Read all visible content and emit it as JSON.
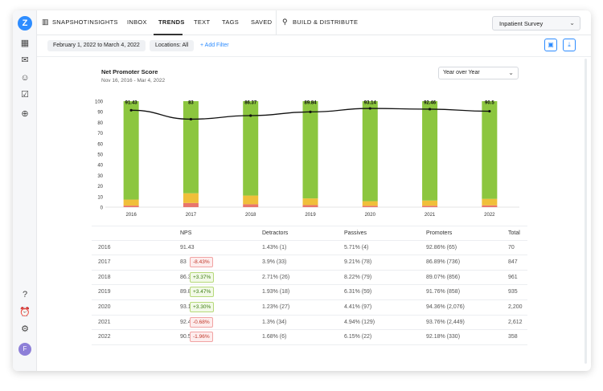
{
  "nav": {
    "items": [
      {
        "key": "snapshot",
        "label": "SNAPSHOT"
      },
      {
        "key": "insights",
        "label": "INSIGHTS"
      },
      {
        "key": "inbox",
        "label": "INBOX"
      },
      {
        "key": "trends",
        "label": "TRENDS"
      },
      {
        "key": "text",
        "label": "TEXT"
      },
      {
        "key": "tags",
        "label": "TAGS"
      },
      {
        "key": "saved",
        "label": "SAVED"
      }
    ],
    "active": "TRENDS",
    "build": "BUILD & DISTRIBUTE",
    "survey": "Inpatient Survey"
  },
  "sidebar": {
    "logo": "Z",
    "avatar": "F",
    "icons": [
      "dashboard-icon",
      "messages-icon",
      "user-icon",
      "tasks-icon",
      "add-icon",
      "help-icon",
      "alarm-icon",
      "settings-icon"
    ]
  },
  "filters": {
    "date_range": "February 1, 2022 to March 4, 2022",
    "locations": "Locations: All",
    "add_filter": "+ Add Filter"
  },
  "chart": {
    "title": "Net Promoter Score",
    "subtitle": "Nov 16, 2016 - Mar 4, 2022",
    "period": "Year over Year"
  },
  "chart_data": {
    "type": "bar",
    "categories": [
      "2016",
      "2017",
      "2018",
      "2019",
      "2020",
      "2021",
      "2022"
    ],
    "ylim": [
      0,
      100
    ],
    "yticks": [
      "100",
      "90",
      "80",
      "70",
      "60",
      "50",
      "40",
      "30",
      "20",
      "10",
      "0"
    ],
    "series": [
      {
        "name": "Detractors",
        "color": "#e8766d",
        "values": [
          1.43,
          3.9,
          2.71,
          1.93,
          1.23,
          1.3,
          1.68
        ]
      },
      {
        "name": "Passives",
        "color": "#f0bf3a",
        "values": [
          5.71,
          9.21,
          8.22,
          6.31,
          4.41,
          4.94,
          6.15
        ]
      },
      {
        "name": "Promoters",
        "color": "#8cc63f",
        "values": [
          92.86,
          86.89,
          89.07,
          91.76,
          94.36,
          93.76,
          92.18
        ]
      }
    ],
    "line": {
      "name": "NPS",
      "values": [
        91.43,
        83,
        86.37,
        89.84,
        93.14,
        92.46,
        90.5
      ],
      "labels": [
        "91.43",
        "83",
        "86.37",
        "89.84",
        "93.14",
        "92.46",
        "90.5"
      ]
    },
    "grid": false
  },
  "table": {
    "headers": [
      "",
      "NPS",
      "Detractors",
      "Passives",
      "Promoters",
      "Total"
    ],
    "rows": [
      {
        "year": "2016",
        "nps": "91.43",
        "change": "",
        "dir": "",
        "detractors": "1.43% (1)",
        "passives": "5.71% (4)",
        "promoters": "92.86% (65)",
        "total": "70"
      },
      {
        "year": "2017",
        "nps": "83",
        "change": "-8.43%",
        "dir": "down",
        "detractors": "3.9% (33)",
        "passives": "9.21% (78)",
        "promoters": "86.89% (736)",
        "total": "847"
      },
      {
        "year": "2018",
        "nps": "86.37",
        "change": "+3.37%",
        "dir": "up",
        "detractors": "2.71% (26)",
        "passives": "8.22% (79)",
        "promoters": "89.07% (856)",
        "total": "961"
      },
      {
        "year": "2019",
        "nps": "89.84",
        "change": "+3.47%",
        "dir": "up",
        "detractors": "1.93% (18)",
        "passives": "6.31% (59)",
        "promoters": "91.76% (858)",
        "total": "935"
      },
      {
        "year": "2020",
        "nps": "93.14",
        "change": "+3.30%",
        "dir": "up",
        "detractors": "1.23% (27)",
        "passives": "4.41% (97)",
        "promoters": "94.36% (2,076)",
        "total": "2,200"
      },
      {
        "year": "2021",
        "nps": "92.46",
        "change": "-0.68%",
        "dir": "down",
        "detractors": "1.3% (34)",
        "passives": "4.94% (129)",
        "promoters": "93.76% (2,449)",
        "total": "2,612"
      },
      {
        "year": "2022",
        "nps": "90.5",
        "change": "-1.96%",
        "dir": "down",
        "detractors": "1.68% (6)",
        "passives": "6.15% (22)",
        "promoters": "92.18% (330)",
        "total": "358"
      }
    ]
  }
}
